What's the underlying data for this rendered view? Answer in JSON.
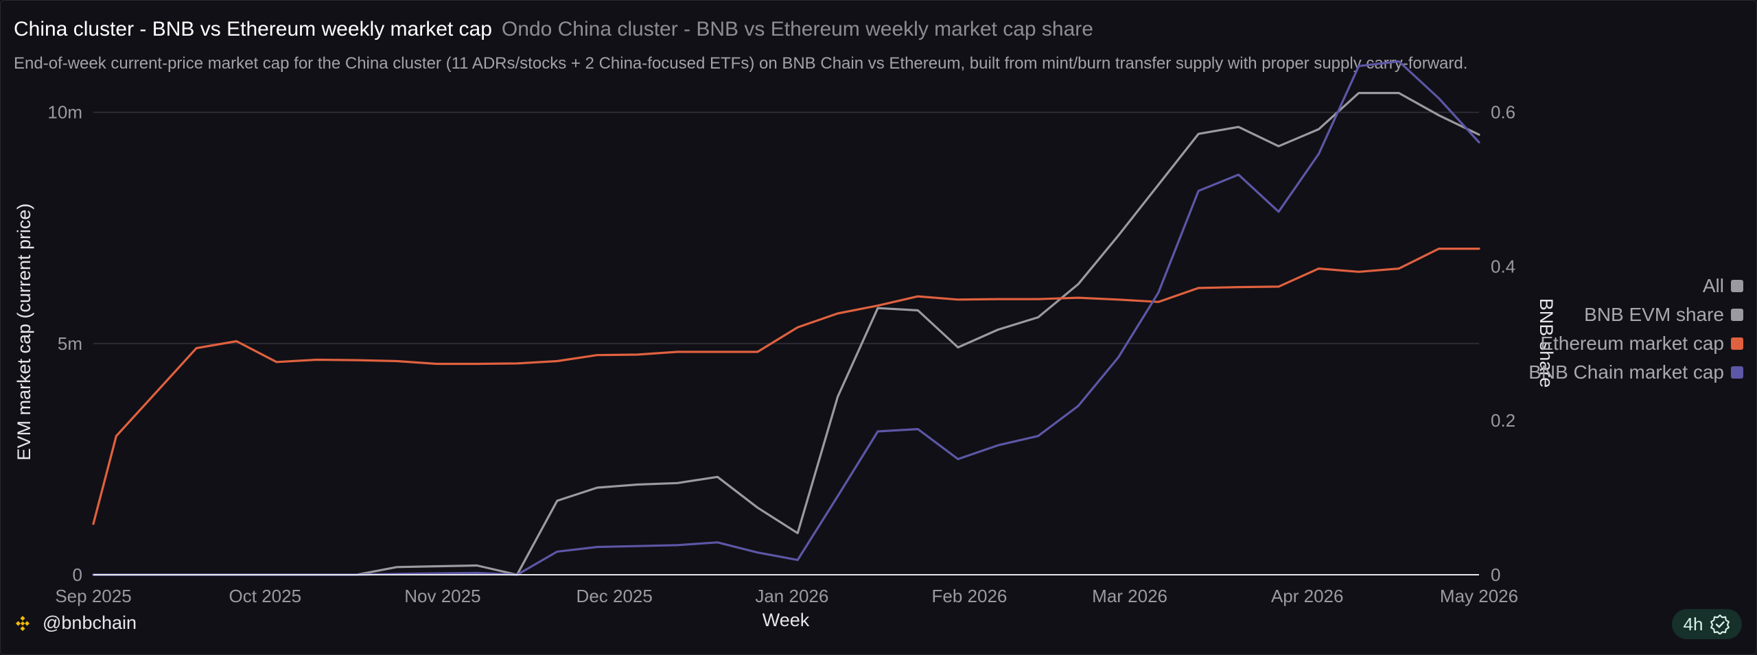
{
  "header": {
    "title": "China cluster - BNB vs Ethereum weekly market cap",
    "subtitle": "Ondo China cluster - BNB vs Ethereum weekly market cap share",
    "description": "End-of-week current-price market cap for the China cluster (11 ADRs/stocks + 2 China-focused ETFs) on BNB Chain vs Ethereum, built from mint/burn transfer supply with proper supply carry-forward."
  },
  "footer": {
    "handle": "@bnbchain",
    "badge": "4h",
    "brand_icon": "bnb-logo-icon",
    "badge_icon": "verified-check-icon"
  },
  "legend": [
    {
      "label": "All",
      "color": "#9b9aa0"
    },
    {
      "label": "BNB EVM share",
      "color": "#9b9aa0"
    },
    {
      "label": "Ethereum market cap",
      "color": "#e0613f"
    },
    {
      "label": "BNB Chain market cap",
      "color": "#5c57a6"
    }
  ],
  "chart_data": {
    "type": "line",
    "xlabel": "Week",
    "ylabel": "EVM market cap (current price)",
    "y2label": "BNB share",
    "x": [
      "2025-09-05",
      "2025-09-12",
      "2025-09-19",
      "2025-09-26",
      "2025-10-03",
      "2025-10-10",
      "2025-10-17",
      "2025-10-24",
      "2025-10-31",
      "2025-11-07",
      "2025-11-14",
      "2025-11-21",
      "2025-11-28",
      "2025-12-05",
      "2025-12-12",
      "2025-12-19",
      "2025-12-26",
      "2026-01-02",
      "2026-01-09",
      "2026-01-16",
      "2026-01-23",
      "2026-01-30",
      "2026-02-06",
      "2026-02-13",
      "2026-02-20",
      "2026-02-27",
      "2026-03-06",
      "2026-03-13",
      "2026-03-20",
      "2026-03-27",
      "2026-04-03",
      "2026-04-10",
      "2026-04-17",
      "2026-04-24",
      "2026-05-01"
    ],
    "xticks": [
      "Sep 2025",
      "Oct 2025",
      "Nov 2025",
      "Dec 2025",
      "Jan 2026",
      "Feb 2026",
      "Mar 2026",
      "Apr 2026",
      "May 2026"
    ],
    "xlim": [
      "2025-09-01",
      "2026-05-01"
    ],
    "ylim": [
      0,
      10.5
    ],
    "yticks": [
      0,
      5,
      10
    ],
    "ytick_labels": [
      "0",
      "5m",
      "10m"
    ],
    "y2lim": [
      0,
      0.63
    ],
    "y2ticks": [
      0,
      0.2,
      0.4,
      0.6
    ],
    "y2tick_labels": [
      "0",
      "0.2",
      "0.4",
      "0.6"
    ],
    "grid": true,
    "legend_position": "right",
    "series": [
      {
        "name": "Ethereum market cap",
        "axis": "left",
        "color": "#e0613f",
        "points": [
          [
            "2025-09-01",
            1.1
          ],
          [
            "2025-09-05",
            3.0
          ],
          [
            "2025-09-12",
            3.95
          ],
          [
            "2025-09-19",
            4.9
          ],
          [
            "2025-09-26",
            5.05
          ],
          [
            "2025-10-03",
            4.6
          ],
          [
            "2025-10-10",
            4.65
          ],
          [
            "2025-10-17",
            4.64
          ],
          [
            "2025-10-24",
            4.62
          ],
          [
            "2025-10-31",
            4.56
          ],
          [
            "2025-11-07",
            4.56
          ],
          [
            "2025-11-14",
            4.57
          ],
          [
            "2025-11-21",
            4.62
          ],
          [
            "2025-11-28",
            4.75
          ],
          [
            "2025-12-05",
            4.76
          ],
          [
            "2025-12-12",
            4.82
          ],
          [
            "2025-12-19",
            4.82
          ],
          [
            "2025-12-26",
            4.82
          ],
          [
            "2026-01-02",
            5.35
          ],
          [
            "2026-01-09",
            5.65
          ],
          [
            "2026-01-16",
            5.82
          ],
          [
            "2026-01-23",
            6.02
          ],
          [
            "2026-01-30",
            5.95
          ],
          [
            "2026-02-06",
            5.96
          ],
          [
            "2026-02-13",
            5.96
          ],
          [
            "2026-02-20",
            5.99
          ],
          [
            "2026-02-27",
            5.95
          ],
          [
            "2026-03-06",
            5.9
          ],
          [
            "2026-03-13",
            6.2
          ],
          [
            "2026-03-20",
            6.22
          ],
          [
            "2026-03-27",
            6.23
          ],
          [
            "2026-04-03",
            6.62
          ],
          [
            "2026-04-10",
            6.55
          ],
          [
            "2026-04-17",
            6.62
          ],
          [
            "2026-04-24",
            7.05
          ],
          [
            "2026-05-01",
            7.05
          ]
        ]
      },
      {
        "name": "BNB Chain market cap",
        "axis": "left",
        "color": "#5c57a6",
        "points": [
          [
            "2025-09-01",
            0.0
          ],
          [
            "2025-09-26",
            0.0
          ],
          [
            "2025-10-17",
            0.0
          ],
          [
            "2025-10-24",
            0.02
          ],
          [
            "2025-10-31",
            0.03
          ],
          [
            "2025-11-07",
            0.04
          ],
          [
            "2025-11-14",
            0.0
          ],
          [
            "2025-11-21",
            0.5
          ],
          [
            "2025-11-28",
            0.6
          ],
          [
            "2025-12-05",
            0.62
          ],
          [
            "2025-12-12",
            0.64
          ],
          [
            "2025-12-19",
            0.7
          ],
          [
            "2025-12-26",
            0.48
          ],
          [
            "2026-01-02",
            0.32
          ],
          [
            "2026-01-09",
            1.7
          ],
          [
            "2026-01-16",
            3.1
          ],
          [
            "2026-01-23",
            3.15
          ],
          [
            "2026-01-30",
            2.5
          ],
          [
            "2026-02-06",
            2.8
          ],
          [
            "2026-02-13",
            3.0
          ],
          [
            "2026-02-20",
            3.65
          ],
          [
            "2026-02-27",
            4.7
          ],
          [
            "2026-03-06",
            6.1
          ],
          [
            "2026-03-13",
            8.3
          ],
          [
            "2026-03-20",
            8.65
          ],
          [
            "2026-03-27",
            7.85
          ],
          [
            "2026-04-03",
            9.1
          ],
          [
            "2026-04-10",
            11.0
          ],
          [
            "2026-04-17",
            11.1
          ],
          [
            "2026-04-24",
            10.3
          ],
          [
            "2026-05-01",
            9.35
          ]
        ]
      },
      {
        "name": "BNB EVM share",
        "axis": "right",
        "color": "#9b9aa0",
        "points": [
          [
            "2025-09-01",
            0.0
          ],
          [
            "2025-10-17",
            0.0
          ],
          [
            "2025-10-24",
            0.01
          ],
          [
            "2025-10-31",
            0.011
          ],
          [
            "2025-11-07",
            0.012
          ],
          [
            "2025-11-14",
            0.0
          ],
          [
            "2025-11-21",
            0.096
          ],
          [
            "2025-11-28",
            0.113
          ],
          [
            "2025-12-05",
            0.117
          ],
          [
            "2025-12-12",
            0.119
          ],
          [
            "2025-12-19",
            0.127
          ],
          [
            "2025-12-26",
            0.087
          ],
          [
            "2026-01-02",
            0.054
          ],
          [
            "2026-01-09",
            0.231
          ],
          [
            "2026-01-16",
            0.346
          ],
          [
            "2026-01-23",
            0.343
          ],
          [
            "2026-01-30",
            0.295
          ],
          [
            "2026-02-06",
            0.318
          ],
          [
            "2026-02-13",
            0.334
          ],
          [
            "2026-02-20",
            0.377
          ],
          [
            "2026-02-27",
            0.44
          ],
          [
            "2026-03-06",
            0.506
          ],
          [
            "2026-03-13",
            0.572
          ],
          [
            "2026-03-20",
            0.581
          ],
          [
            "2026-03-27",
            0.556
          ],
          [
            "2026-04-03",
            0.578
          ],
          [
            "2026-04-10",
            0.625
          ],
          [
            "2026-04-17",
            0.625
          ],
          [
            "2026-04-24",
            0.596
          ],
          [
            "2026-05-01",
            0.571
          ]
        ]
      }
    ]
  }
}
